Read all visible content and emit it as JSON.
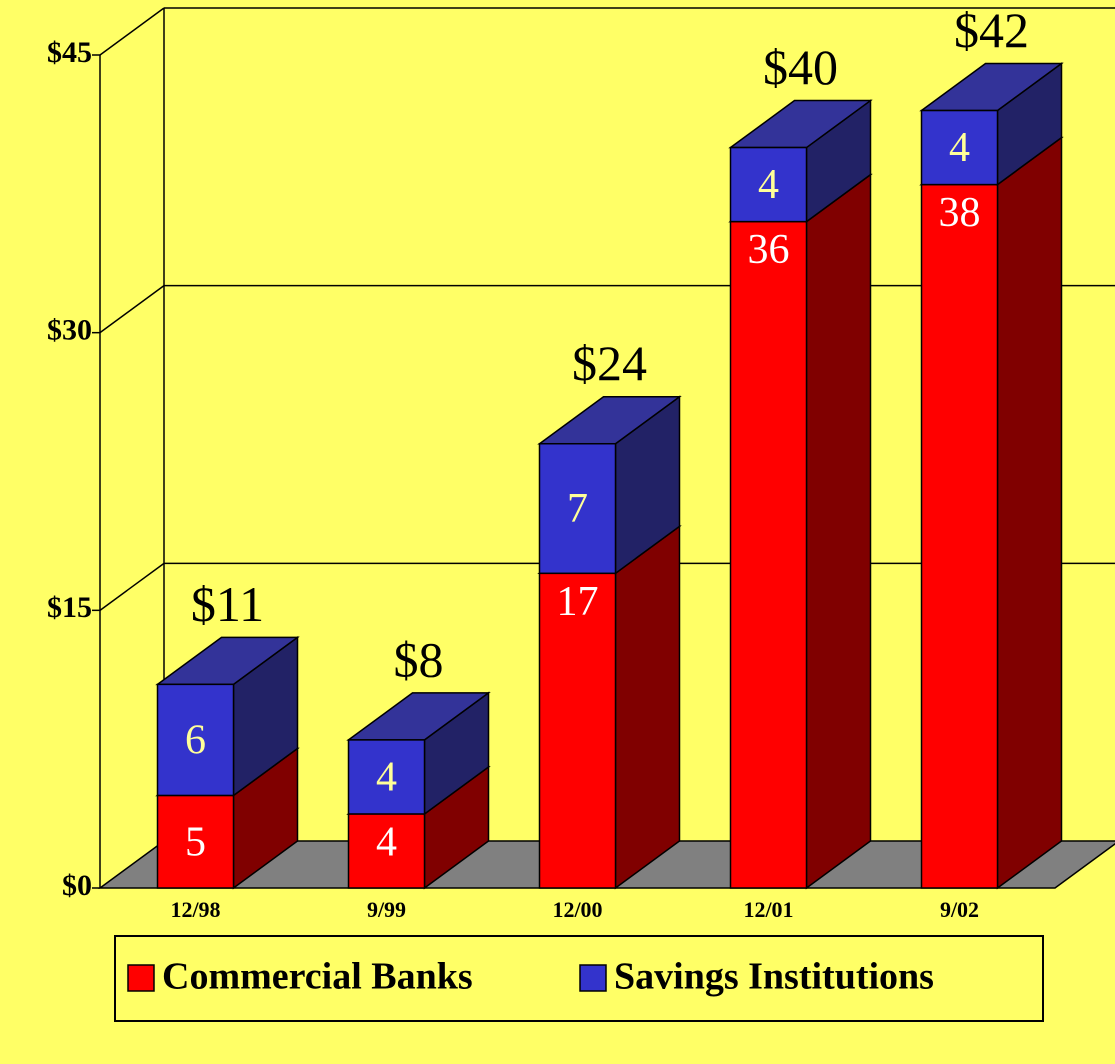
{
  "chart_data": {
    "type": "bar3d_stacked",
    "categories": [
      "12/98",
      "9/99",
      "12/00",
      "12/01",
      "9/02"
    ],
    "series": [
      {
        "name": "Commercial Banks",
        "color": "#ff0000",
        "values": [
          5,
          4,
          17,
          36,
          38
        ]
      },
      {
        "name": "Savings Institutions",
        "color": "#3333cc",
        "values": [
          6,
          4,
          7,
          4,
          4
        ]
      }
    ],
    "totals": [
      11,
      8,
      24,
      40,
      42
    ],
    "total_labels": [
      "$11",
      "$8",
      "$24",
      "$40",
      "$42"
    ],
    "ylim": [
      0,
      45
    ],
    "yticks": [
      {
        "value": 0,
        "label": "$0"
      },
      {
        "value": 15,
        "label": "$15"
      },
      {
        "value": 30,
        "label": "$30"
      },
      {
        "value": 45,
        "label": "$45"
      }
    ],
    "grid": true,
    "legend": "bottom"
  }
}
